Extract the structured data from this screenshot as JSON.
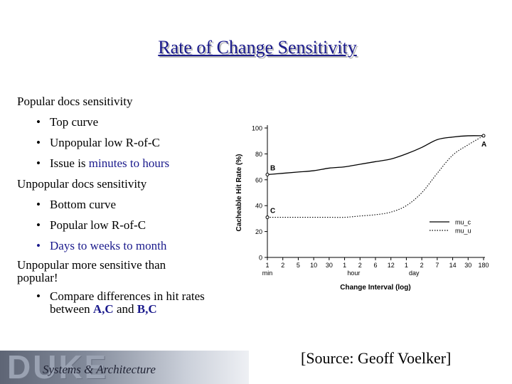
{
  "slide": {
    "title": "Rate of Change Sensitivity",
    "bullets": [
      {
        "level": 1,
        "text": "Popular docs sensitivity"
      },
      {
        "level": 2,
        "text": "Top curve"
      },
      {
        "level": 2,
        "text": "Unpopular low R-of-C"
      },
      {
        "level": 2,
        "text_pre": "Issue is ",
        "text_hl": "minutes to hours"
      },
      {
        "level": 1,
        "text": "Unpopular docs sensitivity"
      },
      {
        "level": 2,
        "text": "Bottom curve"
      },
      {
        "level": 2,
        "text": "Popular low R-of-C"
      },
      {
        "level": 2,
        "text_hl": "Days to weeks to month"
      },
      {
        "level": 1,
        "text_line1": "Unpopular more sensitive than",
        "text_line2": "popular!"
      },
      {
        "level": 2,
        "text_pre": "Compare differences in hit rates between ",
        "hl1": "A,C",
        "mid": " and ",
        "hl2": "B,C"
      }
    ],
    "footer_logo": "DUKE",
    "footer_subtitle": "Systems & Architecture",
    "source": "[Source: Geoff Voelker]",
    "colors": {
      "title": "#1a1a8c",
      "highlight": "#1a1a8c"
    }
  },
  "chart_data": {
    "type": "line",
    "xlabel": "Change Interval (log)",
    "ylabel": "Cacheable Hit Rate (%)",
    "ylim": [
      0,
      100
    ],
    "yticks": [
      0,
      20,
      40,
      60,
      80,
      100
    ],
    "x_ticks": [
      "1",
      "2",
      "5",
      "10",
      "30",
      "1",
      "2",
      "6",
      "12",
      "1",
      "2",
      "7",
      "14",
      "30",
      "180"
    ],
    "x_units": [
      "min",
      "hour",
      "day"
    ],
    "series": [
      {
        "name": "mu_c",
        "style": "solid",
        "values": [
          64,
          65,
          66,
          67,
          69,
          70,
          72,
          74,
          76,
          80,
          85,
          91,
          93,
          94,
          94
        ]
      },
      {
        "name": "mu_u",
        "style": "dotted",
        "values": [
          31,
          31,
          31,
          31,
          31,
          31,
          32,
          33,
          35,
          40,
          50,
          65,
          79,
          87,
          94
        ]
      }
    ],
    "annotations": [
      {
        "label": "A",
        "series": "mu_c",
        "index": 14
      },
      {
        "label": "B",
        "series": "mu_c",
        "index": 0
      },
      {
        "label": "C",
        "series": "mu_u",
        "index": 0
      }
    ],
    "legend": "bottom-right"
  }
}
